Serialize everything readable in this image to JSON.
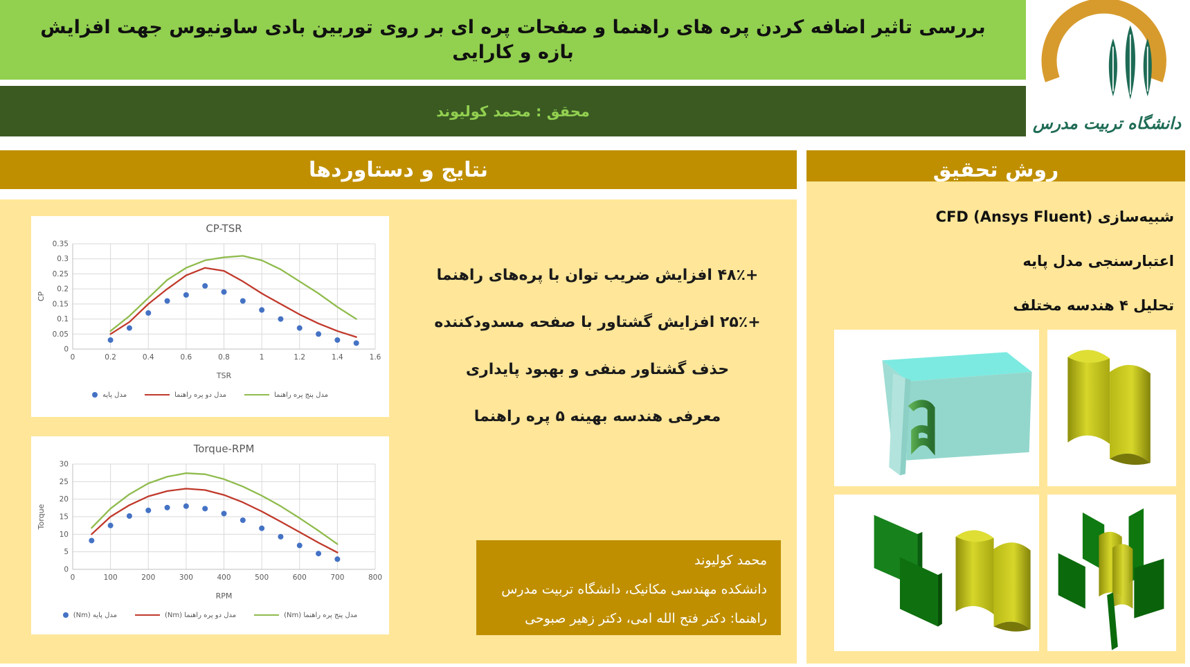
{
  "header": {
    "title": "بررسی تاثیر اضافه کردن پره های راهنما و صفحات پره ای بر روی توربین بادی ساونیوس جهت افزایش بازه و کارایی",
    "researcher_label": "محقق : محمد کولیوند",
    "logo_text": "دانشگاه تربیت مدرس"
  },
  "sections": {
    "results": {
      "title": "نتایج و دستاوردها",
      "bullets": [
        "+۴۸٪ افزایش ضریب توان با پره‌های راهنما",
        "+۲۵٪ افزایش گشتاور با صفحه مسدودکننده",
        "حذف گشتاور منفی و بهبود پایداری",
        "معرفی هندسه بهینه ۵ پره راهنما"
      ],
      "info_box": {
        "lines": [
          "محمد کولیوند",
          "دانشکده مهندسی مکانیک، دانشگاه تربیت مدرس",
          "راهنما: دکتر فتح الله امی، دکتر زهیر صبوحی"
        ]
      }
    },
    "method": {
      "title": "روش تحقیق",
      "items": [
        "شبیه‌سازی CFD (Ansys Fluent)",
        "اعتبارسنجی مدل پایه",
        "تحلیل ۴ هندسه مختلف"
      ]
    }
  },
  "colors": {
    "light_green": "#92D050",
    "dark_green": "#3A5A22",
    "gold": "#BF8F00",
    "cream": "#FFE699",
    "series_blue": "#4472C4",
    "series_red": "#C0392B",
    "series_green": "#8FBB4C"
  },
  "chart_data": [
    {
      "type": "line+scatter",
      "title": "CP-TSR",
      "xlabel": "TSR",
      "ylabel": "CP",
      "xlim": [
        0,
        1.6
      ],
      "ylim": [
        0,
        0.35
      ],
      "xticks": [
        "0",
        "0.2",
        "0.4",
        "0.6",
        "0.8",
        "1",
        "1.2",
        "1.4",
        "1.6"
      ],
      "yticks": [
        "0",
        "0.05",
        "0.1",
        "0.15",
        "0.2",
        "0.25",
        "0.3",
        "0.35"
      ],
      "grid": true,
      "legend_position": "bottom",
      "x": [
        0.2,
        0.3,
        0.4,
        0.5,
        0.6,
        0.7,
        0.8,
        0.9,
        1.0,
        1.1,
        1.2,
        1.3,
        1.4,
        1.5
      ],
      "series": [
        {
          "name": "مدل پایه",
          "type": "scatter",
          "color": "#4472C4",
          "values": [
            0.03,
            0.07,
            0.12,
            0.16,
            0.18,
            0.21,
            0.19,
            0.16,
            0.13,
            0.1,
            0.07,
            0.05,
            0.03,
            0.02
          ]
        },
        {
          "name": "مدل دو پره راهنما",
          "type": "line",
          "color": "#C0392B",
          "values": [
            0.05,
            0.09,
            0.15,
            0.2,
            0.245,
            0.27,
            0.26,
            0.225,
            0.185,
            0.15,
            0.115,
            0.085,
            0.06,
            0.04
          ]
        },
        {
          "name": "مدل پنج پره راهنما",
          "type": "line",
          "color": "#8FBB4C",
          "values": [
            0.06,
            0.11,
            0.17,
            0.23,
            0.27,
            0.295,
            0.305,
            0.31,
            0.295,
            0.265,
            0.225,
            0.185,
            0.14,
            0.1
          ]
        }
      ]
    },
    {
      "type": "line+scatter",
      "title": "Torque-RPM",
      "xlabel": "RPM",
      "ylabel": "Torque",
      "xlim": [
        0,
        800
      ],
      "ylim": [
        0,
        30
      ],
      "xticks": [
        "0",
        "100",
        "200",
        "300",
        "400",
        "500",
        "600",
        "700",
        "800"
      ],
      "yticks": [
        "0",
        "5",
        "10",
        "15",
        "20",
        "25",
        "30"
      ],
      "grid": true,
      "legend_position": "bottom",
      "x": [
        50,
        100,
        150,
        200,
        250,
        300,
        350,
        400,
        450,
        500,
        550,
        600,
        650,
        700
      ],
      "series": [
        {
          "name": "مدل پایه (Nm)",
          "type": "scatter",
          "color": "#4472C4",
          "values": [
            8.2,
            12.5,
            15.2,
            16.8,
            17.6,
            18.0,
            17.3,
            15.9,
            14.0,
            11.7,
            9.3,
            6.8,
            4.5,
            2.9
          ]
        },
        {
          "name": "مدل دو پره راهنما (Nm)",
          "type": "line",
          "color": "#C0392B",
          "values": [
            10.0,
            15.0,
            18.3,
            20.8,
            22.3,
            23.0,
            22.6,
            21.2,
            19.1,
            16.5,
            13.6,
            10.6,
            7.6,
            4.8
          ]
        },
        {
          "name": "مدل پنج پره راهنما (Nm)",
          "type": "line",
          "color": "#8FBB4C",
          "values": [
            11.8,
            17.3,
            21.4,
            24.5,
            26.4,
            27.4,
            27.1,
            25.7,
            23.6,
            21.0,
            18.0,
            14.6,
            11.0,
            7.2
          ]
        }
      ]
    }
  ]
}
